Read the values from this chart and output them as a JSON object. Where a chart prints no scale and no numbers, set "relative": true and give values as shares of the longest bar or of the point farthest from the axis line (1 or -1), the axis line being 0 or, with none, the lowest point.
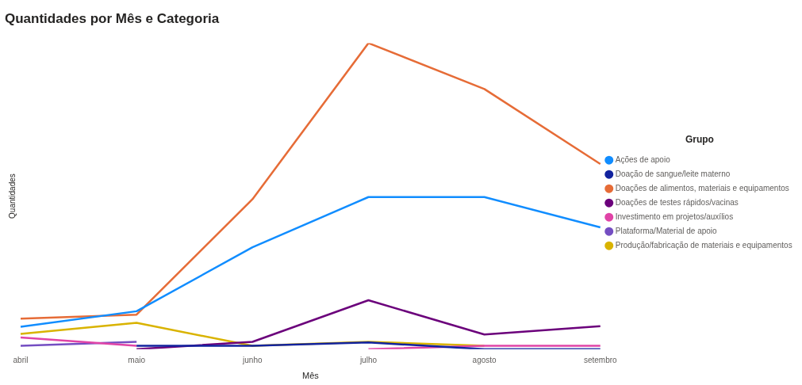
{
  "chart_data": {
    "type": "line",
    "title": "Quantidades por Mês e Categoria",
    "xlabel": "Mês",
    "ylabel": "Quantidades",
    "legend_title": "Grupo",
    "legend": "right",
    "relative": true,
    "grid": false,
    "marker": "none",
    "categories": [
      "abril",
      "maio",
      "junho",
      "julho",
      "agosto",
      "setembro"
    ],
    "series": [
      {
        "name": "Ações de apoio",
        "color": "#118dff",
        "values": [
          0.073,
          0.124,
          0.333,
          0.497,
          0.497,
          0.398
        ]
      },
      {
        "name": "Doação de sangue/leite materno",
        "color": "#12239e",
        "values": [
          null,
          0.011,
          0.011,
          0.022,
          0,
          0
        ]
      },
      {
        "name": "Doações de alimentos, materiais e equipamentos",
        "color": "#e66c37",
        "values": [
          0.1,
          0.113,
          0.49,
          1,
          0.85,
          0.605
        ]
      },
      {
        "name": "Doações de testes rápidos/vacinas",
        "color": "#6b007b",
        "values": [
          null,
          0,
          0.024,
          0.16,
          0.048,
          0.075
        ]
      },
      {
        "name": "Investimento em projetos/auxílios",
        "color": "#e044a7",
        "values": [
          0.038,
          0.011,
          null,
          0,
          0.011,
          0.011
        ]
      },
      {
        "name": "Plataforma/Material de apoio",
        "color": "#744ec2",
        "values": [
          0.011,
          0.024,
          null,
          null,
          null,
          null
        ]
      },
      {
        "name": "Produção/fabricação de materiais e equipamentos",
        "color": "#d9b300",
        "values": [
          0.05,
          0.086,
          0.011,
          0.024,
          0.011,
          null
        ]
      }
    ]
  }
}
